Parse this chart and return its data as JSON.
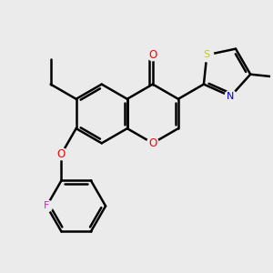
{
  "bg_color": "#ebebeb",
  "bond_color": "#000000",
  "bond_width": 1.8,
  "atom_colors": {
    "O": "#ff0000",
    "N": "#0000cd",
    "S": "#cccc00",
    "F": "#ff00ff",
    "C": "#000000"
  },
  "figsize": [
    3.0,
    3.0
  ],
  "dpi": 100
}
